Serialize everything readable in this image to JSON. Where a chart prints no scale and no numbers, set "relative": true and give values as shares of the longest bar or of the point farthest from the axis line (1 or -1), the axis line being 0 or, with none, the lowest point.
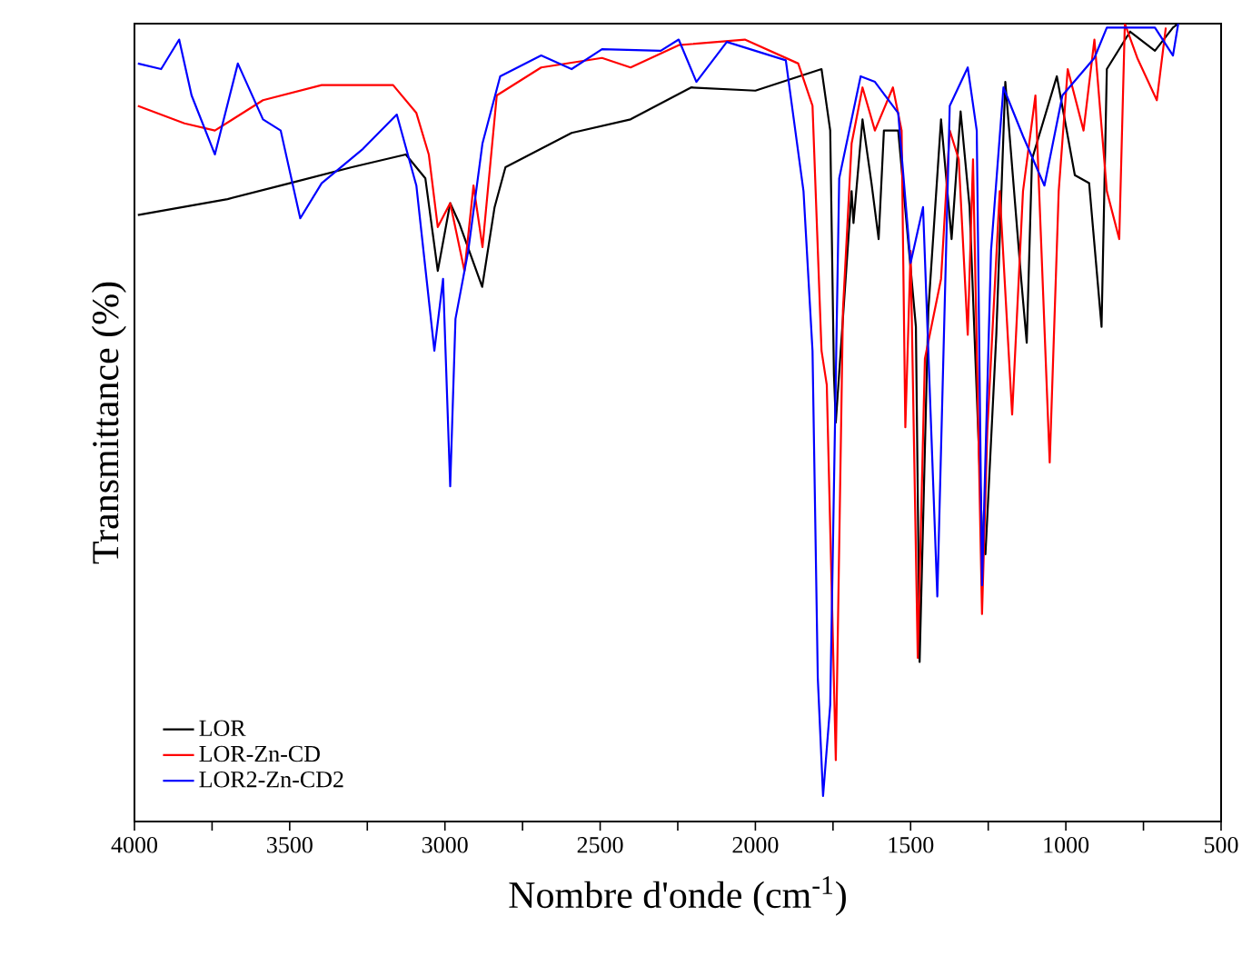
{
  "chart_data": {
    "type": "line",
    "xlabel": "Nombre d'onde (cm$^{-1}$)",
    "ylabel": "Transmittance (%)",
    "relative": true,
    "legend": "bottom left",
    "marker": "none",
    "line_style": "solid",
    "grid": false,
    "xlim": [
      4000,
      500
    ],
    "xticks": [
      4000,
      {
        "value": 3750,
        "label": null
      },
      3500,
      {
        "value": 3250,
        "label": null
      },
      3000,
      {
        "value": 2750,
        "label": null
      },
      2500,
      {
        "value": 2250,
        "label": null
      },
      2000,
      {
        "value": 1750,
        "label": null
      },
      1500,
      {
        "value": 1250,
        "label": null
      },
      1000,
      {
        "value": 750,
        "label": null
      },
      500
    ],
    "series": [
      {
        "name": "LOR",
        "color": "#000000",
        "x": [
          3989,
          3700,
          3500,
          3300,
          3126,
          3063,
          3023,
          2983,
          2954,
          2880,
          2840,
          2805,
          2592,
          2402,
          2207,
          2000,
          1787,
          1759,
          1747,
          1741,
          1690,
          1684,
          1655,
          1626,
          1603,
          1586,
          1540,
          1483,
          1471,
          1443,
          1402,
          1368,
          1339,
          1310,
          1270,
          1259,
          1224,
          1195,
          1144,
          1126,
          1109,
          1029,
          971,
          925,
          885,
          868,
          828,
          793,
          713,
          655,
          638
        ],
        "values": [
          0.76,
          0.78,
          0.8,
          0.82,
          0.836,
          0.806,
          0.69,
          0.775,
          0.75,
          0.67,
          0.77,
          0.82,
          0.863,
          0.88,
          0.92,
          0.916,
          0.943,
          0.866,
          0.56,
          0.5,
          0.79,
          0.75,
          0.88,
          0.8,
          0.73,
          0.866,
          0.866,
          0.62,
          0.2,
          0.64,
          0.88,
          0.73,
          0.89,
          0.77,
          0.364,
          0.335,
          0.61,
          0.927,
          0.68,
          0.6,
          0.83,
          0.934,
          0.81,
          0.8,
          0.62,
          0.943,
          null,
          0.99,
          0.966,
          0.995,
          1.0
        ]
      },
      {
        "name": "LOR-Zn-CD",
        "color": "#ff0000",
        "x": [
          3989,
          3839,
          3741,
          3586,
          3397,
          3167,
          3092,
          3052,
          3023,
          2983,
          2937,
          2908,
          2879,
          2833,
          2690,
          2494,
          2402,
          2247,
          2034,
          1862,
          1816,
          1787,
          1770,
          1741,
          1718,
          1690,
          1655,
          1615,
          1557,
          1529,
          1517,
          1500,
          1477,
          1454,
          1402,
          1374,
          1345,
          1316,
          1299,
          1270,
          1253,
          1213,
          1173,
          1138,
          1098,
          1052,
          1023,
          994,
          943,
          908,
          868,
          828,
          810,
          770,
          707,
          678
        ],
        "values": [
          0.897,
          0.875,
          0.866,
          0.904,
          0.923,
          0.923,
          0.888,
          0.836,
          0.745,
          0.775,
          0.69,
          0.797,
          0.72,
          0.91,
          0.945,
          0.957,
          0.945,
          0.973,
          0.98,
          0.95,
          0.897,
          0.59,
          0.547,
          0.077,
          0.64,
          0.85,
          0.92,
          0.866,
          0.92,
          0.866,
          0.494,
          0.715,
          0.205,
          0.58,
          0.68,
          0.866,
          0.83,
          0.61,
          0.83,
          0.26,
          0.49,
          0.79,
          0.51,
          0.79,
          0.91,
          0.45,
          0.79,
          0.943,
          0.866,
          0.98,
          0.79,
          0.73,
          1.0,
          0.957,
          0.904,
          0.995
        ]
      },
      {
        "name": "LOR2-Zn-CD2",
        "color": "#0000ff",
        "x": [
          3989,
          3914,
          3856,
          3816,
          3741,
          3667,
          3586,
          3529,
          3466,
          3397,
          3264,
          3155,
          3092,
          3034,
          3006,
          2983,
          2966,
          2925,
          2879,
          2822,
          2690,
          2592,
          2494,
          2305,
          2247,
          2190,
          2092,
          1902,
          1845,
          1816,
          1799,
          1782,
          1759,
          1730,
          1661,
          1615,
          1540,
          1500,
          1460,
          1414,
          1374,
          1316,
          1287,
          1270,
          1241,
          1201,
          1138,
          1069,
          1011,
          908,
          868,
          713,
          655,
          638
        ],
        "values": [
          0.95,
          0.943,
          0.98,
          0.91,
          0.836,
          0.95,
          0.88,
          0.866,
          0.756,
          0.8,
          0.843,
          0.886,
          0.797,
          0.59,
          0.68,
          0.42,
          0.63,
          0.715,
          0.85,
          0.934,
          0.96,
          0.943,
          0.968,
          0.966,
          0.98,
          0.927,
          0.977,
          0.954,
          0.79,
          0.59,
          0.18,
          0.032,
          0.146,
          0.806,
          0.934,
          0.927,
          0.888,
          0.7,
          0.77,
          0.282,
          0.897,
          0.945,
          0.866,
          0.296,
          0.715,
          0.92,
          0.859,
          0.797,
          0.91,
          0.957,
          0.995,
          0.995,
          0.96,
          1.0
        ]
      }
    ]
  }
}
